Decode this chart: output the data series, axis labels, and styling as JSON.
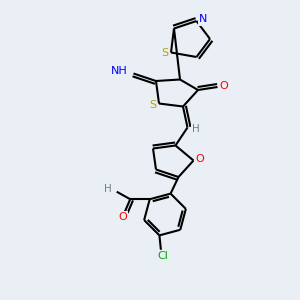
{
  "background_color": "#eaeff5",
  "atom_colors": {
    "S": "#b8a000",
    "N": "#0000ff",
    "O": "#ff0000",
    "Cl": "#00aa00",
    "C": "#000000",
    "H": "#708090"
  },
  "bond_color": "#000000",
  "bond_width": 1.5
}
